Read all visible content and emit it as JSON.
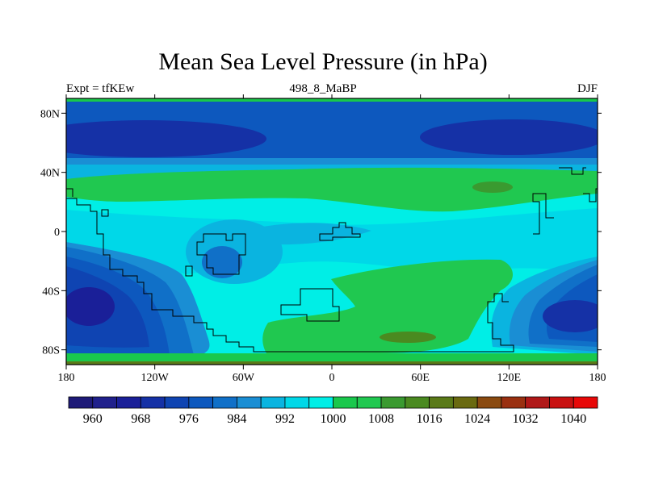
{
  "chart_data": {
    "type": "heatmap",
    "title": "Mean Sea Level Pressure (in hPa)",
    "subtitle_left": "Expt = tfKEw",
    "subtitle_center": "498_8_MaBP",
    "subtitle_right": "DJF",
    "xlim": [
      -180,
      180
    ],
    "ylim": [
      -90,
      90
    ],
    "x_ticks": [
      {
        "value": -180,
        "label": "180"
      },
      {
        "value": -120,
        "label": "120W"
      },
      {
        "value": -60,
        "label": "60W"
      },
      {
        "value": 0,
        "label": "0"
      },
      {
        "value": 60,
        "label": "60E"
      },
      {
        "value": 120,
        "label": "120E"
      },
      {
        "value": 180,
        "label": "180"
      }
    ],
    "y_ticks": [
      {
        "value": 80,
        "label": "80N"
      },
      {
        "value": 40,
        "label": "40N"
      },
      {
        "value": 0,
        "label": "0"
      },
      {
        "value": -40,
        "label": "40S"
      },
      {
        "value": -80,
        "label": "80S"
      }
    ],
    "colorbar": {
      "levels": [
        960,
        964,
        968,
        972,
        976,
        980,
        984,
        988,
        992,
        996,
        1000,
        1004,
        1008,
        1012,
        1016,
        1020,
        1024,
        1028,
        1032,
        1036,
        1040
      ],
      "labels": [
        "960",
        "968",
        "976",
        "984",
        "992",
        "1000",
        "1008",
        "1016",
        "1024",
        "1032",
        "1040"
      ],
      "colors": [
        "#1e1a78",
        "#20208c",
        "#1a1f98",
        "#1531a6",
        "#0f44b2",
        "#0d58be",
        "#1070c8",
        "#1a8ed4",
        "#0ab4e0",
        "#00d8e8",
        "#00eee6",
        "#19c84c",
        "#20c850",
        "#3a9a30",
        "#4a8a20",
        "#5a7a18",
        "#6a6a10",
        "#8a4a10",
        "#9a3010",
        "#b01818",
        "#c81010",
        "#e80808"
      ]
    }
  }
}
